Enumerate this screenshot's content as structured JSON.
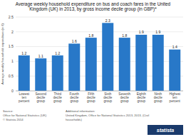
{
  "chart_data": {
    "type": "bar",
    "title": "Average weekly household expenditure on bus and coach fares in the United\nKingdom (UK) in 2013, by gross income decile group (in GBP)*",
    "categories": [
      "Lowest\nten\npercent",
      "Second\ndecile\ngroup",
      "Third\ndecile\ngroup",
      "Fourth\ndecile\ngroup",
      "Fifth\ndecile\ngroup",
      "Sixth\ndecile\ngroup",
      "Seventh\ndecile\ngroup",
      "Eighth\ndecile\ngroup",
      "Ninth\ndecile\ngroup",
      "Highest\nten\npercent"
    ],
    "values": [
      1.2,
      1.1,
      1.2,
      1.6,
      1.8,
      2.3,
      1.8,
      1.9,
      1.9,
      1.4
    ],
    "color": "#2878c8",
    "ylim": [
      0,
      2.5
    ],
    "yticks": [
      0,
      0.5,
      1,
      1.5,
      2,
      2.5
    ],
    "ylabel": "Average weekly household expenditure (in £)",
    "grid": true,
    "data_labels": true,
    "annotations": [
      "Source:\nOffice for National Statistics (UK)\n© Statista 2014",
      "Additional information:\nUnited Kingdom, Office for National Statistics 2013, 2013, (Civil\nhouseholds)",
      "statista"
    ]
  }
}
